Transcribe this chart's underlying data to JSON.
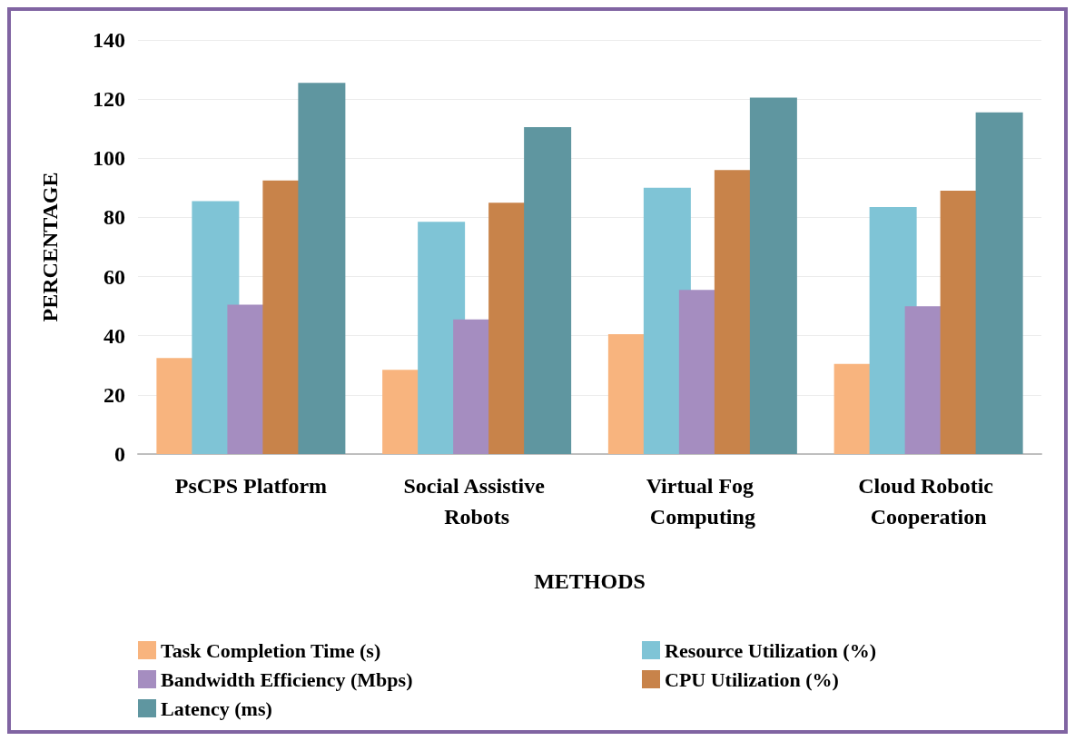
{
  "chart_data": {
    "type": "bar",
    "xlabel": "METHODS",
    "ylabel": "PERCENTAGE",
    "categories": [
      "PsCPS Platform",
      "Social Assistive Robots",
      "Virtual Fog Computing",
      "Cloud Robotic Cooperation"
    ],
    "series": [
      {
        "name": "Task Completion Time (s)",
        "color": "#f8b47e",
        "values": [
          32.5,
          28.5,
          40.5,
          30.5
        ]
      },
      {
        "name": "Resource Utilization (%)",
        "color": "#7fc4d6",
        "values": [
          85.5,
          78.5,
          90,
          83.5
        ]
      },
      {
        "name": "Bandwidth Efficiency (Mbps)",
        "color": "#a58dc0",
        "values": [
          50.5,
          45.5,
          55.5,
          50
        ]
      },
      {
        "name": "CPU Utilization (%)",
        "color": "#c8834a",
        "values": [
          92.5,
          85,
          96,
          89
        ]
      },
      {
        "name": "Latency (ms)",
        "color": "#5f96a0",
        "values": [
          125.5,
          110.5,
          120.5,
          115.5
        ]
      }
    ],
    "ylim": [
      0,
      140
    ],
    "yticks": [
      0,
      20,
      40,
      60,
      80,
      100,
      120,
      140
    ],
    "grid": "y",
    "legend": "bottom"
  }
}
